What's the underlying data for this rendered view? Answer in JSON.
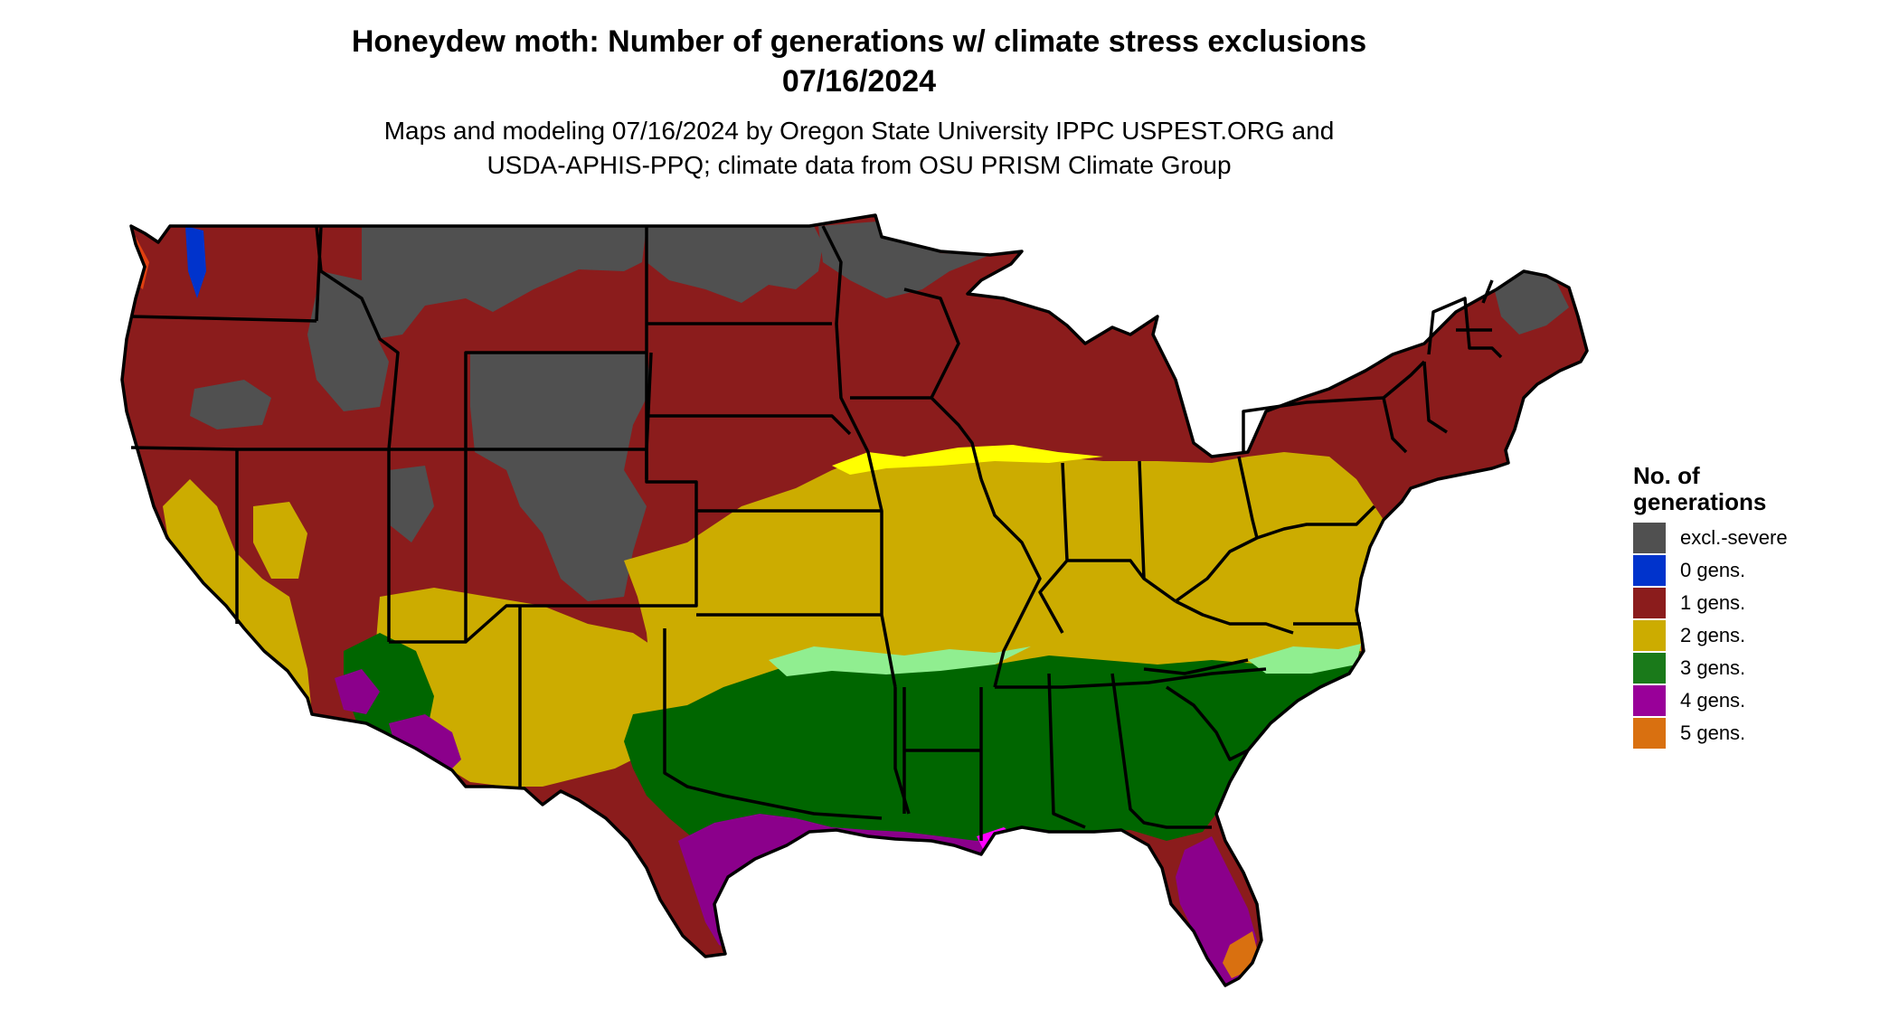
{
  "title": {
    "line1": "Honeydew moth: Number of generations w/ climate stress exclusions",
    "line2": "07/16/2024"
  },
  "subtitle": {
    "line1": "Maps and modeling 07/16/2024 by Oregon State University IPPC USPEST.ORG and",
    "line2": "USDA-APHIS-PPQ; climate data from OSU PRISM Climate Group"
  },
  "legend": {
    "title_line1": "No. of",
    "title_line2": "generations",
    "items": [
      {
        "label": "excl.-severe",
        "color": "#505050"
      },
      {
        "label": "0 gens.",
        "color": "#0033cc"
      },
      {
        "label": "1 gens.",
        "color": "#8b1c1c"
      },
      {
        "label": "2 gens.",
        "color": "#ccac00"
      },
      {
        "label": "3 gens.",
        "color": "#1a7a1a"
      },
      {
        "label": "4 gens.",
        "color": "#990099"
      },
      {
        "label": "5 gens.",
        "color": "#d97010"
      }
    ]
  },
  "map_colors": {
    "excl_severe": "#505050",
    "gen1": "#8b1c1c",
    "gen1_highlight": "#e04010",
    "gen2": "#ccac00",
    "gen2_highlight": "#ffff00",
    "gen3": "#006600",
    "gen3_highlight": "#90ee90",
    "gen4": "#8b008b",
    "gen4_highlight": "#ff00ff",
    "gen5": "#d97010",
    "gen0": "#0033cc",
    "state_borders": "#000000",
    "water": "#ffffff"
  }
}
